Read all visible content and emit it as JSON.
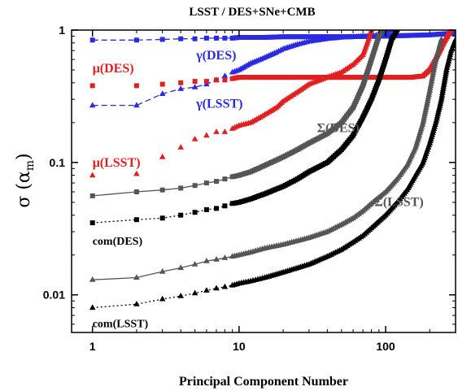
{
  "chart_data": {
    "type": "scatter",
    "title": "LSST / DES+SNe+CMB",
    "xlabel": "Principal Component Number",
    "ylabel": "σ (α",
    "ylabel_sub": "m",
    "ylabel_close": ")",
    "xscale": "log",
    "yscale": "log",
    "xlim": [
      0.72,
      300
    ],
    "ylim": [
      0.0052,
      1.0
    ],
    "grid": false,
    "x_ticks": [
      1,
      10,
      100
    ],
    "x_tick_labels": [
      "1",
      "10",
      "100"
    ],
    "y_ticks": [
      0.01,
      0.1,
      1
    ],
    "y_tick_labels": [
      "0.01",
      "0.1",
      "1"
    ],
    "series": [
      {
        "label": "γ(DES)",
        "color": "#2a2ae0",
        "marker": "square",
        "line": "dashed",
        "points": [
          [
            1,
            0.84
          ],
          [
            2,
            0.84
          ],
          [
            3,
            0.85
          ],
          [
            4,
            0.86
          ],
          [
            5,
            0.86
          ],
          [
            6,
            0.87
          ],
          [
            7,
            0.87
          ],
          [
            8,
            0.87
          ],
          [
            9,
            0.87
          ],
          [
            10,
            0.88
          ],
          [
            15,
            0.88
          ],
          [
            20,
            0.89
          ],
          [
            30,
            0.89
          ],
          [
            50,
            0.89
          ],
          [
            100,
            0.9
          ],
          [
            200,
            0.92
          ],
          [
            300,
            0.95
          ]
        ]
      },
      {
        "label": "γ(LSST)",
        "color": "#2a2ae0",
        "marker": "triangle",
        "line": "dashed",
        "points": [
          [
            1,
            0.27
          ],
          [
            2,
            0.27
          ],
          [
            3,
            0.33
          ],
          [
            4,
            0.36
          ],
          [
            5,
            0.37
          ],
          [
            6,
            0.39
          ],
          [
            7,
            0.42
          ],
          [
            8,
            0.45
          ],
          [
            9,
            0.48
          ],
          [
            10,
            0.5
          ],
          [
            12,
            0.56
          ],
          [
            15,
            0.62
          ],
          [
            18,
            0.68
          ],
          [
            20,
            0.72
          ],
          [
            25,
            0.78
          ],
          [
            30,
            0.82
          ],
          [
            40,
            0.86
          ],
          [
            50,
            0.88
          ],
          [
            80,
            0.9
          ],
          [
            100,
            0.95
          ],
          [
            110,
            1.0
          ]
        ]
      },
      {
        "label": "μ(DES)",
        "color": "#e02020",
        "marker": "square",
        "line": "none",
        "points": [
          [
            1,
            0.38
          ],
          [
            2,
            0.38
          ],
          [
            3,
            0.39
          ],
          [
            4,
            0.4
          ],
          [
            5,
            0.41
          ],
          [
            6,
            0.41
          ],
          [
            7,
            0.42
          ],
          [
            8,
            0.42
          ],
          [
            9,
            0.43
          ],
          [
            10,
            0.44
          ],
          [
            15,
            0.44
          ],
          [
            20,
            0.44
          ],
          [
            30,
            0.44
          ],
          [
            50,
            0.44
          ],
          [
            80,
            0.44
          ],
          [
            100,
            0.44
          ],
          [
            150,
            0.44
          ],
          [
            180,
            0.45
          ],
          [
            200,
            0.5
          ],
          [
            220,
            0.6
          ],
          [
            250,
            0.8
          ],
          [
            280,
            1.0
          ]
        ]
      },
      {
        "label": "μ(LSST)",
        "color": "#e02020",
        "marker": "triangle",
        "line": "none",
        "points": [
          [
            1,
            0.08
          ],
          [
            2,
            0.082
          ],
          [
            3,
            0.11
          ],
          [
            4,
            0.13
          ],
          [
            5,
            0.15
          ],
          [
            6,
            0.16
          ],
          [
            7,
            0.17
          ],
          [
            8,
            0.17
          ],
          [
            9,
            0.18
          ],
          [
            10,
            0.19
          ],
          [
            12,
            0.2
          ],
          [
            14,
            0.22
          ],
          [
            16,
            0.24
          ],
          [
            18,
            0.26
          ],
          [
            20,
            0.29
          ],
          [
            25,
            0.34
          ],
          [
            30,
            0.39
          ],
          [
            40,
            0.44
          ],
          [
            50,
            0.48
          ],
          [
            60,
            0.55
          ],
          [
            70,
            0.65
          ],
          [
            75,
            0.8
          ],
          [
            80,
            1.0
          ]
        ]
      },
      {
        "label": "Σ(DES)",
        "color": "#555555",
        "marker": "square",
        "line": "solid",
        "points": [
          [
            1,
            0.056
          ],
          [
            2,
            0.06
          ],
          [
            3,
            0.062
          ],
          [
            4,
            0.064
          ],
          [
            5,
            0.067
          ],
          [
            6,
            0.07
          ],
          [
            7,
            0.072
          ],
          [
            8,
            0.075
          ],
          [
            9,
            0.078
          ],
          [
            10,
            0.08
          ],
          [
            12,
            0.085
          ],
          [
            15,
            0.095
          ],
          [
            20,
            0.11
          ],
          [
            25,
            0.125
          ],
          [
            30,
            0.14
          ],
          [
            40,
            0.165
          ],
          [
            50,
            0.2
          ],
          [
            60,
            0.26
          ],
          [
            70,
            0.38
          ],
          [
            80,
            0.6
          ],
          [
            90,
            0.9
          ],
          [
            95,
            1.0
          ]
        ]
      },
      {
        "label": "com(DES)",
        "color": "#000000",
        "marker": "square",
        "line": "dotted",
        "points": [
          [
            1,
            0.035
          ],
          [
            2,
            0.037
          ],
          [
            3,
            0.038
          ],
          [
            4,
            0.04
          ],
          [
            5,
            0.042
          ],
          [
            6,
            0.044
          ],
          [
            7,
            0.045
          ],
          [
            8,
            0.047
          ],
          [
            9,
            0.049
          ],
          [
            10,
            0.05
          ],
          [
            12,
            0.053
          ],
          [
            15,
            0.058
          ],
          [
            20,
            0.066
          ],
          [
            25,
            0.075
          ],
          [
            30,
            0.085
          ],
          [
            40,
            0.1
          ],
          [
            50,
            0.125
          ],
          [
            60,
            0.16
          ],
          [
            70,
            0.22
          ],
          [
            80,
            0.3
          ],
          [
            90,
            0.42
          ],
          [
            100,
            0.6
          ],
          [
            110,
            0.85
          ],
          [
            120,
            1.0
          ]
        ]
      },
      {
        "label": "Σ(LSST)",
        "color": "#555555",
        "marker": "triangle",
        "line": "solid",
        "points": [
          [
            1,
            0.013
          ],
          [
            2,
            0.0135
          ],
          [
            3,
            0.015
          ],
          [
            4,
            0.016
          ],
          [
            5,
            0.017
          ],
          [
            6,
            0.018
          ],
          [
            7,
            0.0185
          ],
          [
            8,
            0.019
          ],
          [
            9,
            0.0195
          ],
          [
            10,
            0.02
          ],
          [
            12,
            0.021
          ],
          [
            15,
            0.0225
          ],
          [
            20,
            0.024
          ],
          [
            30,
            0.027
          ],
          [
            40,
            0.03
          ],
          [
            50,
            0.034
          ],
          [
            60,
            0.038
          ],
          [
            70,
            0.043
          ],
          [
            80,
            0.049
          ],
          [
            100,
            0.06
          ],
          [
            120,
            0.075
          ],
          [
            140,
            0.095
          ],
          [
            160,
            0.13
          ],
          [
            180,
            0.2
          ],
          [
            200,
            0.35
          ],
          [
            220,
            0.6
          ],
          [
            240,
            0.85
          ]
        ]
      },
      {
        "label": "com(LSST)",
        "color": "#000000",
        "marker": "triangle",
        "line": "dotted",
        "points": [
          [
            1,
            0.008
          ],
          [
            2,
            0.0085
          ],
          [
            3,
            0.0093
          ],
          [
            4,
            0.0098
          ],
          [
            5,
            0.0103
          ],
          [
            6,
            0.0108
          ],
          [
            7,
            0.0112
          ],
          [
            8,
            0.0115
          ],
          [
            9,
            0.0118
          ],
          [
            10,
            0.0122
          ],
          [
            12,
            0.0127
          ],
          [
            15,
            0.0135
          ],
          [
            20,
            0.0148
          ],
          [
            30,
            0.017
          ],
          [
            40,
            0.0195
          ],
          [
            50,
            0.022
          ],
          [
            60,
            0.025
          ],
          [
            70,
            0.028
          ],
          [
            80,
            0.032
          ],
          [
            100,
            0.04
          ],
          [
            120,
            0.05
          ],
          [
            140,
            0.062
          ],
          [
            160,
            0.08
          ],
          [
            180,
            0.1
          ],
          [
            200,
            0.14
          ],
          [
            220,
            0.2
          ],
          [
            240,
            0.3
          ],
          [
            260,
            0.5
          ],
          [
            280,
            0.7
          ],
          [
            300,
            0.85
          ]
        ]
      }
    ],
    "annotations": [
      {
        "text": "γ(DES)",
        "color": "#2a2ae0",
        "x": 5.1,
        "y": 0.6
      },
      {
        "text": "μ(DES)",
        "color": "#e02020",
        "x": 1.0,
        "y": 0.48
      },
      {
        "text": "γ(LSST)",
        "color": "#2a2ae0",
        "x": 5.1,
        "y": 0.26
      },
      {
        "text": "Σ(DES)",
        "color": "#555555",
        "x": 34,
        "y": 0.17
      },
      {
        "text": "μ(LSST)",
        "color": "#e02020",
        "x": 1.0,
        "y": 0.093
      },
      {
        "text": "com(DES)",
        "color": "#000000",
        "x": 1.0,
        "y": 0.024
      },
      {
        "text": "Σ(LSST)",
        "color": "#555555",
        "x": 84,
        "y": 0.047
      },
      {
        "text": "com(LSST)",
        "color": "#000000",
        "x": 1.0,
        "y": 0.0057
      }
    ]
  }
}
